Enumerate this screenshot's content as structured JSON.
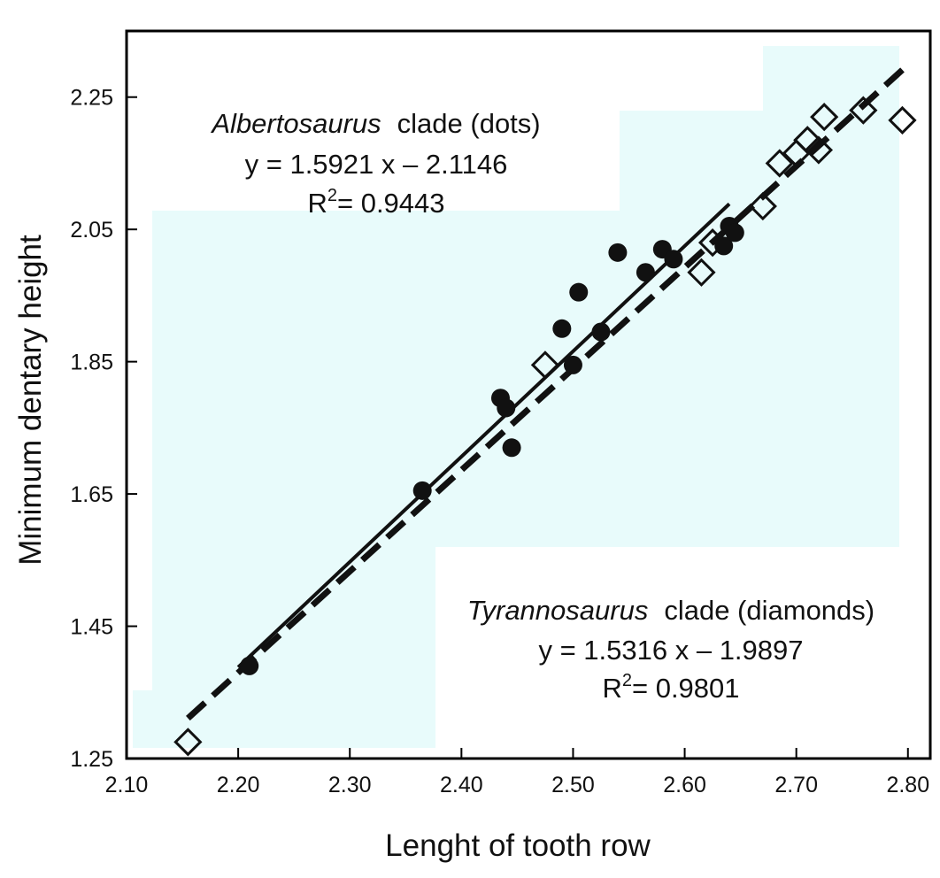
{
  "chart_data": {
    "type": "scatter",
    "xlabel": "Lenght  of  tooth  row",
    "ylabel": "Minimum  dentary  height",
    "xlim": [
      2.1,
      2.82
    ],
    "ylim": [
      1.25,
      2.35
    ],
    "xticks": [
      "2.10",
      "2.20",
      "2.30",
      "2.40",
      "2.50",
      "2.60",
      "2.70",
      "2.80"
    ],
    "yticks": [
      "1.25",
      "1.45",
      "1.65",
      "1.85",
      "2.05",
      "2.25"
    ],
    "grid": false,
    "series": [
      {
        "name": "Albertosaurus clade (dots)",
        "marker": "filled-circle",
        "color": "#111111",
        "points": [
          [
            2.21,
            1.39
          ],
          [
            2.365,
            1.655
          ],
          [
            2.435,
            1.795
          ],
          [
            2.44,
            1.78
          ],
          [
            2.445,
            1.72
          ],
          [
            2.49,
            1.9
          ],
          [
            2.5,
            1.845
          ],
          [
            2.505,
            1.955
          ],
          [
            2.525,
            1.895
          ],
          [
            2.54,
            2.015
          ],
          [
            2.565,
            1.985
          ],
          [
            2.58,
            2.02
          ],
          [
            2.59,
            2.005
          ],
          [
            2.635,
            2.025
          ],
          [
            2.64,
            2.055
          ],
          [
            2.645,
            2.045
          ]
        ],
        "fit": {
          "slope": 1.5921,
          "intercept": -2.1146,
          "x_range": [
            2.2,
            2.64
          ],
          "style": "solid"
        }
      },
      {
        "name": "Tyrannosaurus clade (diamonds)",
        "marker": "open-diamond",
        "color": "#111111",
        "points": [
          [
            2.155,
            1.275
          ],
          [
            2.475,
            1.845
          ],
          [
            2.615,
            1.985
          ],
          [
            2.625,
            2.03
          ],
          [
            2.67,
            2.085
          ],
          [
            2.685,
            2.15
          ],
          [
            2.7,
            2.165
          ],
          [
            2.71,
            2.185
          ],
          [
            2.72,
            2.17
          ],
          [
            2.725,
            2.22
          ],
          [
            2.76,
            2.23
          ],
          [
            2.795,
            2.215
          ]
        ],
        "fit": {
          "slope": 1.5316,
          "intercept": -1.9897,
          "x_range": [
            2.155,
            2.8
          ],
          "style": "dashed"
        }
      }
    ],
    "annotations": [
      {
        "id": "albertosaurus",
        "position": "upper-left",
        "genus": "Albertosaurus",
        "label_rest": "clade (dots)",
        "equation": "y = 1.5921 x – 2.1146",
        "r2_prefix": "R",
        "r2_sup": "2",
        "r2_value": "= 0.9443"
      },
      {
        "id": "tyrannosaurus",
        "position": "lower-right",
        "genus": "Tyrannosaurus",
        "label_rest": "clade  (diamonds)",
        "equation": "y = 1.5316 x – 1.9897",
        "r2_prefix": "R",
        "r2_sup": "2",
        "r2_value": "= 0.9801"
      }
    ],
    "colors": {
      "background_tint": "#e8fbfb",
      "frame": "#000000",
      "marks": "#111111"
    }
  }
}
